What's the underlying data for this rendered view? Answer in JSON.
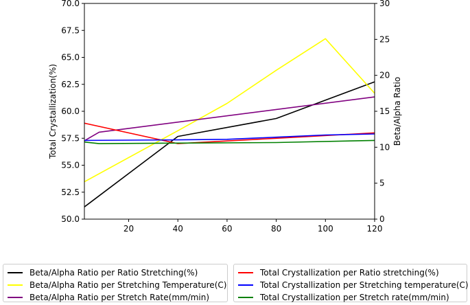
{
  "chart_data": {
    "type": "line",
    "title": "",
    "xlabel": "",
    "ylabel_left": "Total Crystallization(%)",
    "ylabel_right": "Beta/Alpha Ratio",
    "xlim": [
      2,
      120
    ],
    "ylim_left": [
      50.0,
      70.0
    ],
    "ylim_right": [
      0,
      30
    ],
    "x_ticks": [
      20,
      40,
      60,
      80,
      100,
      120
    ],
    "y_left_ticks": [
      "50.0",
      "52.5",
      "55.0",
      "57.5",
      "60.0",
      "62.5",
      "65.0",
      "67.5",
      "70.0"
    ],
    "y_right_ticks": [
      0,
      5,
      10,
      15,
      20,
      25,
      30
    ],
    "grid": false,
    "series": [
      {
        "name": "Beta/Alpha Ratio per Ratio Stretching(%)",
        "axis": "right",
        "color": "#000000",
        "x": [
          2,
          40,
          80,
          120
        ],
        "y": [
          1.7,
          11.5,
          14.0,
          19.1
        ]
      },
      {
        "name": "Beta/Alpha Ratio per Stretching Temperature(C)",
        "axis": "right",
        "color": "#ffff00",
        "x": [
          2,
          40,
          60,
          80,
          100,
          120
        ],
        "y": [
          5.2,
          12.3,
          16.1,
          20.7,
          25.1,
          17.5
        ]
      },
      {
        "name": "Beta/Alpha Ratio per Stretch Rate(mm/min)",
        "axis": "right",
        "color": "#800080",
        "x": [
          2,
          8,
          120
        ],
        "y": [
          10.9,
          12.1,
          17.0
        ]
      },
      {
        "name": "Total Crystallization per Ratio stretching(%)",
        "axis": "left",
        "color": "#ff0000",
        "x": [
          2,
          40,
          80,
          120
        ],
        "y": [
          58.9,
          57.0,
          57.5,
          58.0
        ]
      },
      {
        "name": "Total Crystallization per Stretching temperature(C)",
        "axis": "left",
        "color": "#0000ff",
        "x": [
          2,
          40,
          60,
          80,
          100,
          120
        ],
        "y": [
          57.3,
          57.35,
          57.4,
          57.6,
          57.8,
          57.9
        ]
      },
      {
        "name": "Total Crystallization per Stretch rate(mm/min)",
        "axis": "left",
        "color": "#008000",
        "x": [
          2,
          8,
          40,
          80,
          120
        ],
        "y": [
          57.15,
          57.0,
          57.05,
          57.1,
          57.3
        ]
      }
    ]
  },
  "legend": {
    "left_column": [
      "Beta/Alpha Ratio per Ratio Stretching(%)",
      "Beta/Alpha Ratio per Stretching Temperature(C)",
      "Beta/Alpha Ratio per Stretch Rate(mm/min)"
    ],
    "right_column": [
      "Total Crystallization per Ratio stretching(%)",
      "Total Crystallization per Stretching temperature(C)",
      "Total Crystallization per Stretch rate(mm/min)"
    ]
  }
}
